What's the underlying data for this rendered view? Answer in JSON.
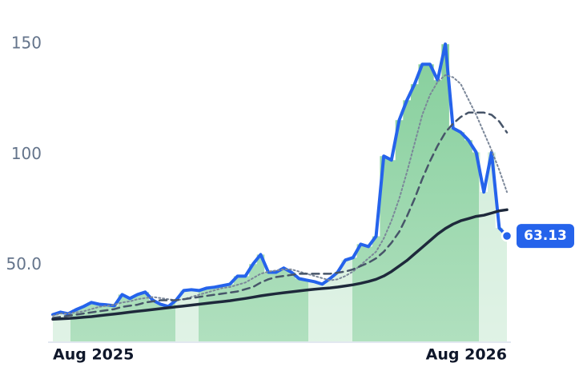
{
  "chart_data": {
    "type": "line",
    "categories": [
      "Aug 2025",
      null,
      null,
      null,
      null,
      null,
      null,
      null,
      null,
      null,
      null,
      null,
      null,
      null,
      null,
      null,
      null,
      null,
      null,
      null,
      null,
      null,
      null,
      null,
      null,
      null,
      null,
      null,
      null,
      null,
      null,
      null,
      null,
      null,
      null,
      null,
      null,
      null,
      null,
      null,
      null,
      null,
      null,
      null,
      null,
      null,
      null,
      null,
      null,
      null,
      null,
      null,
      null,
      null,
      null,
      null,
      null,
      null,
      null,
      "Aug 2026"
    ],
    "series": [
      {
        "color": "#2563eb",
        "style": "solid",
        "area": true,
        "values": [
          27.5,
          28.6,
          27.9,
          29.7,
          31.2,
          33,
          32.2,
          31.9,
          31.5,
          36.6,
          34.8,
          36.6,
          37.7,
          34,
          32.2,
          31.2,
          34,
          38.4,
          38.8,
          38.4,
          39.5,
          39.9,
          40.6,
          41.3,
          44.9,
          44.9,
          50.4,
          54.7,
          46.7,
          46.7,
          48.6,
          46.7,
          43.8,
          43.1,
          42.4,
          41.3,
          43.8,
          46.7,
          52.2,
          53.3,
          59.4,
          58.3,
          63,
          99.3,
          97.5,
          115.6,
          124.6,
          131.9,
          140.9,
          140.9,
          133.7,
          150,
          112,
          110.1,
          106.5,
          101,
          83,
          101,
          66.7,
          63.13
        ]
      },
      {
        "color": "#7b8799",
        "style": "dotted",
        "values": [
          27,
          28,
          28,
          28.5,
          29,
          30,
          31,
          31.5,
          32,
          33,
          33.5,
          34.5,
          35,
          35.5,
          35,
          34.5,
          34,
          34.5,
          35.5,
          36.5,
          37.5,
          38.5,
          39.5,
          40,
          41,
          42,
          44,
          46,
          47,
          47.5,
          48,
          48,
          47,
          46,
          45,
          44,
          43,
          43.5,
          45,
          47,
          50,
          53,
          56,
          62,
          70,
          80,
          92,
          105,
          118,
          127,
          133,
          136,
          135,
          132,
          125,
          118,
          110,
          102,
          93,
          83
        ]
      },
      {
        "color": "#475569",
        "style": "dashed",
        "values": [
          26,
          26.5,
          27,
          27.5,
          28,
          28.5,
          29,
          29.5,
          30,
          31,
          31.5,
          32,
          33,
          33.5,
          34,
          34,
          34,
          34.5,
          35,
          35.5,
          36,
          36.5,
          37,
          37.5,
          38,
          39,
          40,
          42,
          43.5,
          44.5,
          45,
          45.5,
          46,
          46,
          46,
          46,
          46,
          46.5,
          47,
          48,
          49.5,
          51,
          53,
          56,
          60,
          65,
          72,
          80,
          89,
          97,
          104,
          110,
          114,
          117,
          119,
          119,
          119,
          118,
          115,
          110
        ]
      },
      {
        "color": "#1e293b",
        "style": "solid",
        "values": [
          25.4,
          25.6,
          25.8,
          26,
          26.3,
          26.6,
          27,
          27.4,
          27.8,
          28.2,
          28.6,
          29,
          29.4,
          29.8,
          30.2,
          30.6,
          31,
          31.4,
          31.8,
          32.2,
          32.6,
          33,
          33.4,
          33.8,
          34.3,
          34.8,
          35.4,
          36,
          36.5,
          37,
          37.4,
          37.8,
          38.2,
          38.6,
          39,
          39.3,
          39.6,
          40,
          40.5,
          41,
          41.7,
          42.5,
          43.5,
          45,
          47,
          49.5,
          52,
          55,
          58,
          61,
          64,
          66.5,
          68.5,
          70,
          71,
          72,
          72.5,
          73.5,
          74.5,
          75
        ]
      }
    ],
    "area_color": "#86cf9c",
    "ylim": [
      15,
      170
    ],
    "yticks": [
      {
        "value": 50,
        "label": "50.0"
      },
      100,
      150
    ],
    "grid": false
  }
}
